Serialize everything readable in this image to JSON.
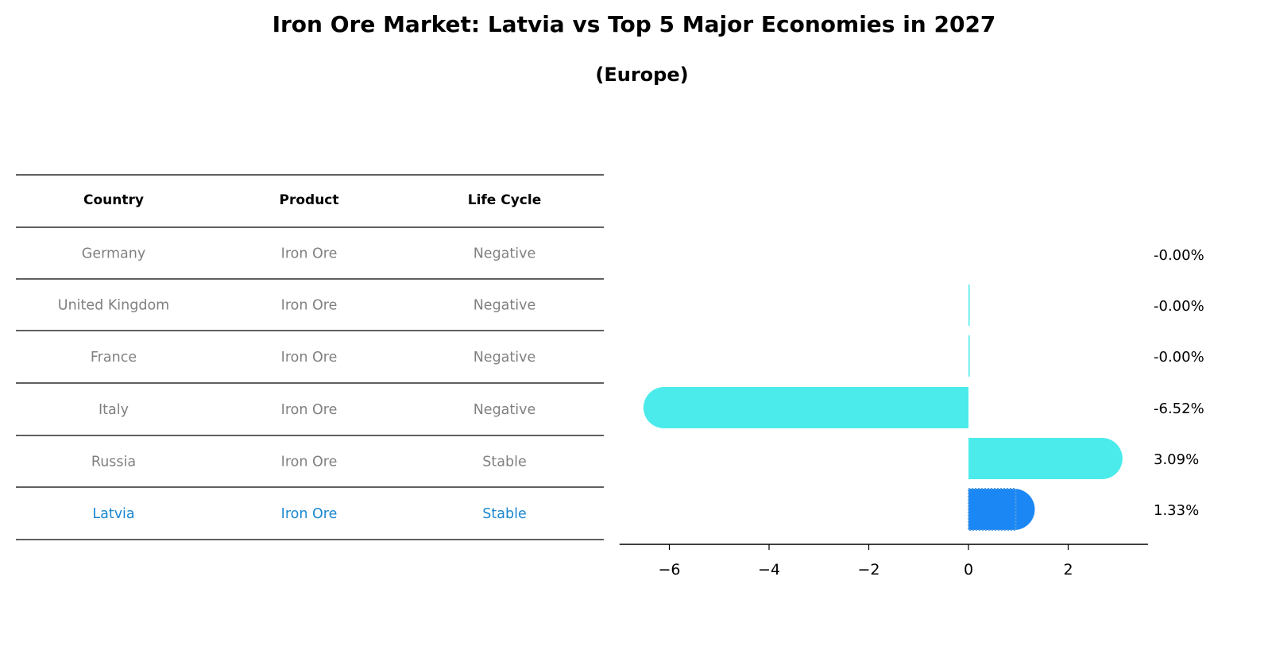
{
  "title": "Iron Ore Market: Latvia vs Top 5 Major Economies in 2027",
  "subtitle": "(Europe)",
  "table": {
    "headers": [
      "Country",
      "Product",
      "Life Cycle"
    ],
    "rows": [
      [
        "Germany",
        "Iron Ore",
        "Negative"
      ],
      [
        "United Kingdom",
        "Iron Ore",
        "Negative"
      ],
      [
        "France",
        "Iron Ore",
        "Negative"
      ],
      [
        "Italy",
        "Iron Ore",
        "Negative"
      ],
      [
        "Russia",
        "Iron Ore",
        "Stable"
      ],
      [
        "Latvia",
        "Iron Ore",
        "Stable"
      ]
    ],
    "highlight_row": "Latvia"
  },
  "colors": {
    "bar": "#4cebeb",
    "highlight": "#1a87f5",
    "text_muted": "#808080",
    "text_highlight": "#1a87d0"
  },
  "chart_data": {
    "type": "bar",
    "orientation": "horizontal",
    "categories": [
      "Germany",
      "United Kingdom",
      "France",
      "Italy",
      "Russia",
      "Latvia"
    ],
    "values": [
      -0.0,
      -0.0,
      -0.0,
      -6.52,
      3.09,
      1.33
    ],
    "labels": [
      "-0.00%",
      "-0.00%",
      "-0.00%",
      "-6.52%",
      "3.09%",
      "1.33%"
    ],
    "xticks": [
      -6,
      -4,
      -2,
      0,
      2
    ],
    "xtick_labels": [
      "−6",
      "−4",
      "−2",
      "0",
      "2"
    ],
    "xlim": [
      -7,
      3.6
    ],
    "highlight": "Latvia",
    "grid": false
  }
}
